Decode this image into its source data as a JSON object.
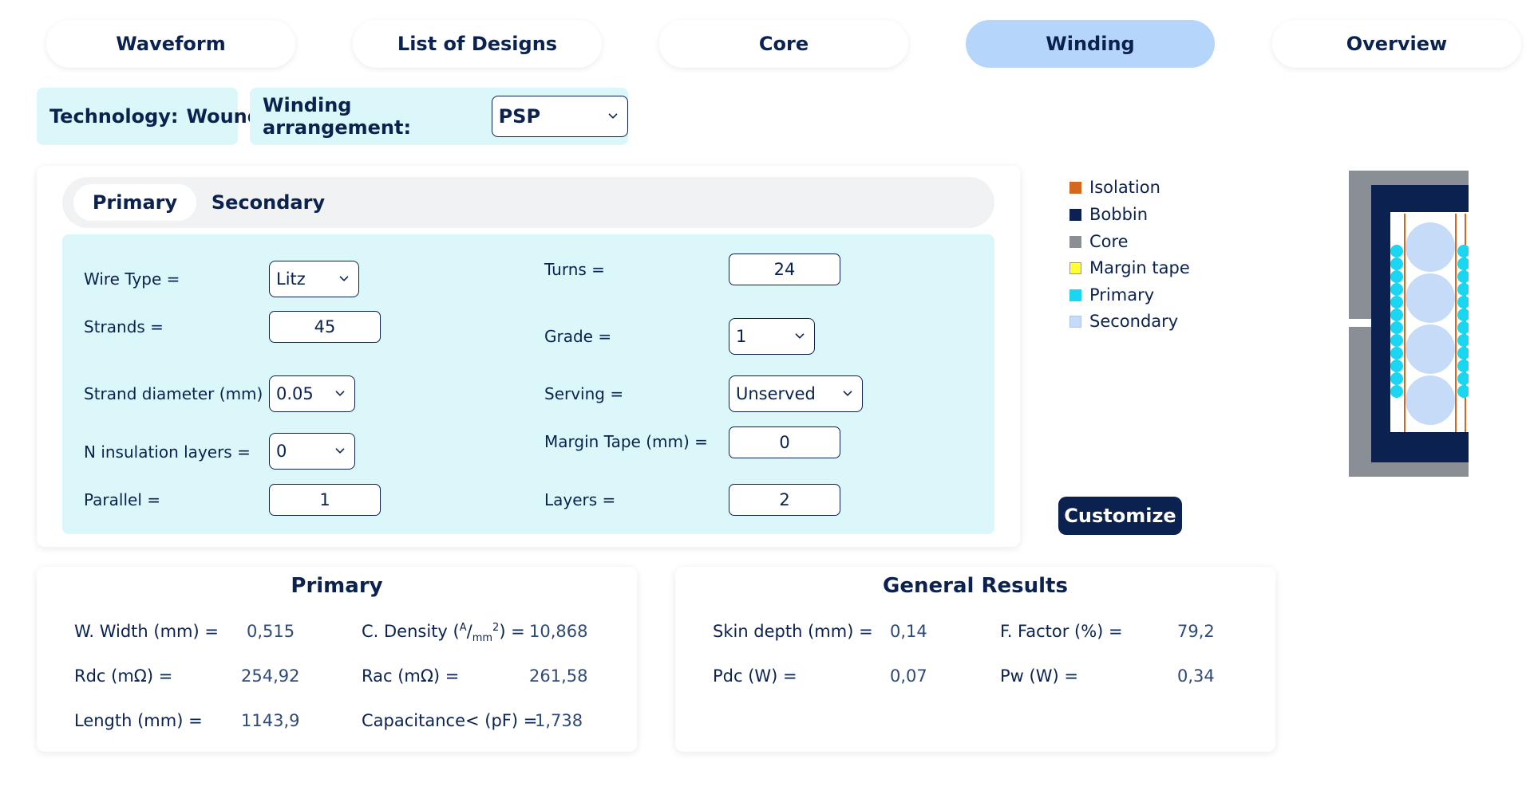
{
  "nav": {
    "tabs": [
      {
        "label": "Waveform"
      },
      {
        "label": "List of Designs"
      },
      {
        "label": "Core"
      },
      {
        "label": "Winding"
      },
      {
        "label": "Overview"
      }
    ],
    "active_tab": "Winding"
  },
  "technology": {
    "label": "Technology:",
    "value": "Wound"
  },
  "winding_arrangement": {
    "label": "Winding arrangement:",
    "value": "PSP"
  },
  "subtabs": {
    "primary": "Primary",
    "secondary": "Secondary",
    "active": "Primary"
  },
  "form": {
    "wire_type": {
      "label": "Wire Type =",
      "value": "Litz"
    },
    "strands": {
      "label": "Strands =",
      "value": "45"
    },
    "strand_diameter": {
      "label": "Strand diameter (mm) =",
      "value": "0.05"
    },
    "n_insulation_layers": {
      "label": "N insulation layers =",
      "value": "0"
    },
    "parallel": {
      "label": "Parallel =",
      "value": "1"
    },
    "turns": {
      "label": "Turns =",
      "value": "24"
    },
    "grade": {
      "label": "Grade =",
      "value": "1"
    },
    "serving": {
      "label": "Serving =",
      "value": "Unserved"
    },
    "margin_tape": {
      "label": "Margin Tape (mm) =",
      "value": "0"
    },
    "layers": {
      "label": "Layers =",
      "value": "2"
    }
  },
  "legend": {
    "items": [
      {
        "label": "Isolation",
        "color": "#d2691e"
      },
      {
        "label": "Bobbin",
        "color": "#0b2150"
      },
      {
        "label": "Core",
        "color": "#8a8f96"
      },
      {
        "label": "Margin tape",
        "color": "#ffff33"
      },
      {
        "label": "Primary",
        "color": "#1ad6f0"
      },
      {
        "label": "Secondary",
        "color": "#c6dbf7"
      }
    ]
  },
  "customize_label": "Customize",
  "primary_results": {
    "title": "Primary",
    "w_width": {
      "label": "W. Width (mm) =",
      "value": "0,515"
    },
    "c_density": {
      "label_pre": "C. Density (",
      "unit_num": "A",
      "unit_sep": "/",
      "unit_den": "mm",
      "unit_exp": "2",
      "label_post": ") =",
      "value": "10,868"
    },
    "rdc": {
      "label": "Rdc (mΩ) =",
      "value": "254,92"
    },
    "rac": {
      "label": "Rac (mΩ) =",
      "value": "261,58"
    },
    "length": {
      "label": "Length (mm) =",
      "value": "1143,9"
    },
    "capacitance": {
      "label": "Capacitance< (pF) =",
      "value": "1,738"
    }
  },
  "general_results": {
    "title": "General Results",
    "skin_depth": {
      "label": "Skin depth (mm) =",
      "value": "0,14"
    },
    "f_factor": {
      "label": "F. Factor (%) =",
      "value": "79,2"
    },
    "pdc": {
      "label": "Pdc (W) =",
      "value": "0,07"
    },
    "pw": {
      "label": "Pw (W) =",
      "value": "0,34"
    }
  }
}
